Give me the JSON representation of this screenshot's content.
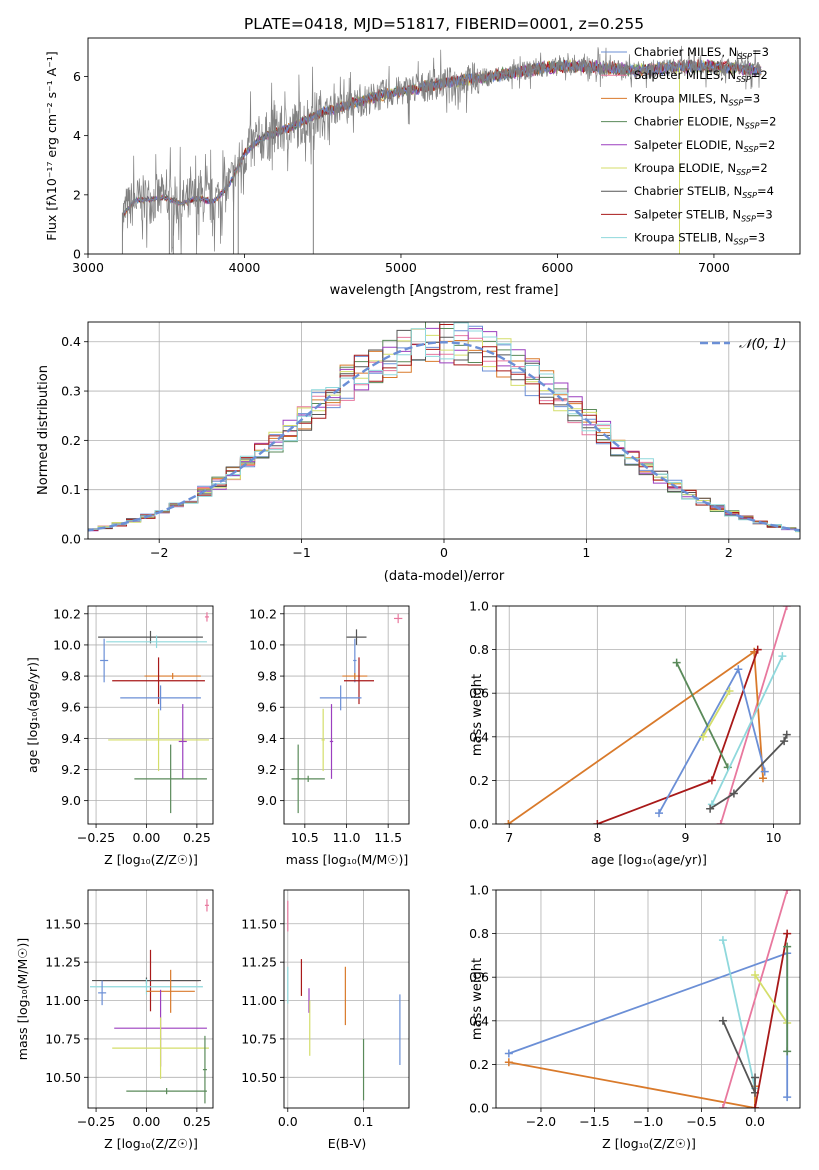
{
  "title": "PLATE=0418, MJD=51817, FIBERID=0001, z=0.255",
  "colors": {
    "ch_miles": "#6b8fd6",
    "sa_miles": "#e8789e",
    "kr_miles": "#d97a2b",
    "ch_elodie": "#5a8a5a",
    "sa_elodie": "#9b3fbf",
    "kr_elodie": "#d4de6a",
    "ch_stelib": "#555555",
    "sa_stelib": "#a81919",
    "kr_stelib": "#8fd8dc",
    "normal": "#6b8fd6",
    "data": "#808080"
  },
  "chart_data": [
    {
      "id": "spectrum",
      "type": "line",
      "xlabel": "wavelength [Angstrom, rest frame]",
      "ylabel": "Flux [fλ10⁻¹⁷ erg cm⁻² s⁻¹ A⁻¹]",
      "xlim": [
        3000,
        7550
      ],
      "ylim": [
        0,
        7.3
      ],
      "xticks": [
        3000,
        4000,
        5000,
        6000,
        7000
      ],
      "yticks": [
        0,
        2,
        4,
        6
      ],
      "legend": [
        {
          "key": "ch_miles",
          "label": "Chabrier MILES, N",
          "sub": "SSP",
          "tail": "=3"
        },
        {
          "key": "sa_miles",
          "label": "Salpeter MILES, N",
          "sub": "SSP",
          "tail": "=2"
        },
        {
          "key": "kr_miles",
          "label": "Kroupa MILES, N",
          "sub": "SSP",
          "tail": "=3"
        },
        {
          "key": "ch_elodie",
          "label": "Chabrier ELODIE, N",
          "sub": "SSP",
          "tail": "=2"
        },
        {
          "key": "sa_elodie",
          "label": "Salpeter ELODIE, N",
          "sub": "SSP",
          "tail": "=2"
        },
        {
          "key": "kr_elodie",
          "label": "Kroupa ELODIE, N",
          "sub": "SSP",
          "tail": "=2"
        },
        {
          "key": "ch_stelib",
          "label": "Chabrier STELIB, N",
          "sub": "SSP",
          "tail": "=4"
        },
        {
          "key": "sa_stelib",
          "label": "Salpeter STELIB, N",
          "sub": "SSP",
          "tail": "=3"
        },
        {
          "key": "kr_stelib",
          "label": "Kroupa STELIB, N",
          "sub": "SSP",
          "tail": "=3"
        }
      ],
      "continuum": {
        "x": [
          3220,
          3300,
          3400,
          3500,
          3600,
          3700,
          3800,
          3900,
          4000,
          4100,
          4300,
          4500,
          4700,
          4900,
          5100,
          5300,
          5500,
          5700,
          5900,
          6100,
          6300,
          6500,
          6700,
          6900,
          7100,
          7300
        ],
        "y": [
          1.3,
          1.8,
          1.85,
          1.9,
          1.7,
          1.9,
          1.75,
          2.3,
          3.4,
          3.9,
          4.3,
          4.8,
          5.1,
          5.4,
          5.6,
          5.8,
          5.95,
          6.1,
          6.3,
          6.35,
          6.3,
          6.2,
          6.3,
          6.35,
          6.3,
          6.2
        ]
      }
    },
    {
      "id": "residuals",
      "type": "step",
      "xlabel": "(data-model)/error",
      "ylabel": "Normed distribution",
      "xlim": [
        -2.5,
        2.5
      ],
      "ylim": [
        0,
        0.44
      ],
      "xticks": [
        -2,
        -1,
        0,
        1,
        2
      ],
      "yticks": [
        0.0,
        0.1,
        0.2,
        0.3,
        0.4
      ],
      "legend_label": "𝒩(0, 1)"
    },
    {
      "id": "age_vs_Z",
      "type": "errorbar",
      "xlabel": "Z [log₁₀(Z/Z☉)]",
      "ylabel": "age  [log₁₀(age/yr)]",
      "xlim": [
        -0.29,
        0.33
      ],
      "ylim": [
        8.85,
        10.25
      ],
      "xticks": [
        -0.25,
        0.0,
        0.25
      ],
      "yticks": [
        9.0,
        9.2,
        9.4,
        9.6,
        9.8,
        10.0,
        10.2
      ],
      "points": [
        {
          "key": "ch_stelib",
          "x": 0.02,
          "xerr": 0.26,
          "y": 10.05,
          "yerr": 0.04
        },
        {
          "key": "kr_stelib",
          "x": 0.05,
          "xerr": 0.25,
          "y": 10.02,
          "yerr": 0.04
        },
        {
          "key": "ch_miles",
          "x": -0.21,
          "xerr": 0.02,
          "y": 9.9,
          "yerr": 0.14
        },
        {
          "key": "sa_miles",
          "x": 0.3,
          "xerr": 0.01,
          "y": 10.18,
          "yerr": 0.03
        },
        {
          "key": "kr_miles",
          "x": 0.13,
          "xerr": 0.14,
          "y": 9.8,
          "yerr": 0.02
        },
        {
          "key": "sa_stelib",
          "x": 0.06,
          "xerr": 0.23,
          "y": 9.77,
          "yerr": 0.15
        },
        {
          "key": "ch_miles",
          "x": 0.07,
          "xerr": 0.2,
          "y": 9.66,
          "yerr": 0.08
        },
        {
          "key": "kr_elodie",
          "x": 0.06,
          "xerr": 0.25,
          "y": 9.39,
          "yerr": 0.2
        },
        {
          "key": "sa_elodie",
          "x": 0.18,
          "xerr": 0.02,
          "y": 9.38,
          "yerr": 0.24
        },
        {
          "key": "ch_elodie",
          "x": 0.12,
          "xerr": 0.18,
          "y": 9.14,
          "yerr": 0.22
        }
      ]
    },
    {
      "id": "age_vs_mass",
      "type": "errorbar",
      "xlabel": "mass [log₁₀(M/M☉)]",
      "xlim": [
        10.25,
        11.75
      ],
      "ylim": [
        8.85,
        10.25
      ],
      "xticks": [
        10.5,
        11.0,
        11.5
      ],
      "yticks": [
        9.0,
        9.2,
        9.4,
        9.6,
        9.8,
        10.0,
        10.2
      ],
      "points": [
        {
          "key": "ch_stelib",
          "x": 11.12,
          "xerr": 0.12,
          "y": 10.05,
          "yerr": 0.05
        },
        {
          "key": "sa_miles",
          "x": 11.62,
          "xerr": 0.05,
          "y": 10.17,
          "yerr": 0.03
        },
        {
          "key": "ch_miles",
          "x": 11.1,
          "xerr": 0.02,
          "y": 9.9,
          "yerr": 0.14
        },
        {
          "key": "kr_miles",
          "x": 11.1,
          "xerr": 0.15,
          "y": 9.8,
          "yerr": 0.02
        },
        {
          "key": "sa_stelib",
          "x": 11.15,
          "xerr": 0.18,
          "y": 9.77,
          "yerr": 0.15
        },
        {
          "key": "ch_miles",
          "x": 10.93,
          "xerr": 0.25,
          "y": 9.66,
          "yerr": 0.08
        },
        {
          "key": "kr_elodie",
          "x": 10.72,
          "xerr": 0.02,
          "y": 9.39,
          "yerr": 0.2
        },
        {
          "key": "sa_elodie",
          "x": 10.82,
          "xerr": 0.02,
          "y": 9.38,
          "yerr": 0.24
        },
        {
          "key": "ch_elodie",
          "x": 10.42,
          "xerr": 0.02,
          "y": 9.14,
          "yerr": 0.22
        },
        {
          "key": "ch_elodie",
          "x": 10.54,
          "xerr": 0.2,
          "y": 9.14,
          "yerr": 0.02
        }
      ]
    },
    {
      "id": "weight_vs_age",
      "type": "line",
      "xlabel": "age  [log₁₀(age/yr)]",
      "ylabel": "mass weight",
      "xlim": [
        6.85,
        10.3
      ],
      "ylim": [
        0,
        1
      ],
      "xticks": [
        7,
        8,
        9,
        10
      ],
      "yticks": [
        0.0,
        0.2,
        0.4,
        0.6,
        0.8,
        1.0
      ],
      "series": [
        {
          "key": "sa_miles",
          "x": [
            9.4,
            10.15
          ],
          "y": [
            0.0,
            1.0
          ]
        },
        {
          "key": "kr_miles",
          "x": [
            6.99,
            9.78,
            9.88
          ],
          "y": [
            0.0,
            0.79,
            0.21
          ]
        },
        {
          "key": "sa_stelib",
          "x": [
            8.0,
            9.3,
            9.82
          ],
          "y": [
            0.0,
            0.2,
            0.8
          ]
        },
        {
          "key": "ch_miles",
          "x": [
            8.7,
            9.6,
            9.9
          ],
          "y": [
            0.05,
            0.71,
            0.24
          ]
        },
        {
          "key": "ch_elodie",
          "x": [
            8.9,
            9.48
          ],
          "y": [
            0.74,
            0.26
          ]
        },
        {
          "key": "kr_elodie",
          "x": [
            9.2,
            9.5
          ],
          "y": [
            0.4,
            0.61
          ]
        },
        {
          "key": "kr_stelib",
          "x": [
            9.3,
            10.1
          ],
          "y": [
            0.09,
            0.77
          ]
        },
        {
          "key": "ch_stelib",
          "x": [
            9.28,
            9.55,
            10.12,
            10.15
          ],
          "y": [
            0.07,
            0.14,
            0.38,
            0.41
          ]
        }
      ]
    },
    {
      "id": "mass_vs_Z",
      "type": "errorbar",
      "xlabel": "Z [log₁₀(Z/Z☉)]",
      "ylabel": "mass [log₁₀(M/M☉)]",
      "xlim": [
        -0.29,
        0.33
      ],
      "ylim": [
        10.3,
        11.72
      ],
      "xticks": [
        -0.25,
        0.0,
        0.25
      ],
      "yticks": [
        10.5,
        10.75,
        11.0,
        11.25,
        11.5
      ],
      "points": [
        {
          "key": "sa_miles",
          "x": 0.3,
          "xerr": 0.01,
          "y": 11.62,
          "yerr": 0.04
        },
        {
          "key": "sa_stelib",
          "x": 0.02,
          "xerr": 0.24,
          "y": 11.13,
          "yerr": 0.2
        },
        {
          "key": "ch_stelib",
          "x": 0.0,
          "xerr": 0.27,
          "y": 11.13,
          "yerr": 0.02
        },
        {
          "key": "kr_stelib",
          "x": 0.0,
          "xerr": 0.28,
          "y": 11.09,
          "yerr": 0.05
        },
        {
          "key": "ch_miles",
          "x": -0.22,
          "xerr": 0.02,
          "y": 11.05,
          "yerr": 0.08
        },
        {
          "key": "kr_miles",
          "x": 0.12,
          "xerr": 0.12,
          "y": 11.06,
          "yerr": 0.14
        },
        {
          "key": "sa_elodie",
          "x": 0.07,
          "xerr": 0.23,
          "y": 10.82,
          "yerr": 0.25
        },
        {
          "key": "kr_elodie",
          "x": 0.07,
          "xerr": 0.24,
          "y": 10.69,
          "yerr": 0.2
        },
        {
          "key": "ch_elodie",
          "x": 0.1,
          "xerr": 0.2,
          "y": 10.41,
          "yerr": 0.02
        },
        {
          "key": "ch_elodie",
          "x": 0.29,
          "xerr": 0.01,
          "y": 10.55,
          "yerr": 0.22
        }
      ]
    },
    {
      "id": "mass_vs_ebv",
      "type": "errorbar",
      "xlabel": "E(B-V)",
      "xlim": [
        -0.005,
        0.16
      ],
      "ylim": [
        10.3,
        11.72
      ],
      "xticks": [
        0.0,
        0.1
      ],
      "yticks": [
        10.5,
        10.75,
        11.0,
        11.25,
        11.5
      ],
      "points": [
        {
          "key": "sa_miles",
          "x": 0.0,
          "xerr": 0.0,
          "y": 11.55,
          "yerr": 0.1
        },
        {
          "key": "kr_stelib",
          "x": 0.0,
          "xerr": 0.0,
          "y": 11.1,
          "yerr": 0.12
        },
        {
          "key": "sa_stelib",
          "x": 0.018,
          "xerr": 0.0,
          "y": 11.15,
          "yerr": 0.12
        },
        {
          "key": "sa_elodie",
          "x": 0.028,
          "xerr": 0.0,
          "y": 11.0,
          "yerr": 0.08
        },
        {
          "key": "kr_elodie",
          "x": 0.029,
          "xerr": 0.0,
          "y": 10.82,
          "yerr": 0.18
        },
        {
          "key": "kr_miles",
          "x": 0.076,
          "xerr": 0.0,
          "y": 11.03,
          "yerr": 0.19
        },
        {
          "key": "ch_elodie",
          "x": 0.1,
          "xerr": 0.0,
          "y": 10.55,
          "yerr": 0.2
        },
        {
          "key": "ch_miles",
          "x": 0.148,
          "xerr": 0.0,
          "y": 10.81,
          "yerr": 0.23
        }
      ]
    },
    {
      "id": "weight_vs_Z",
      "type": "line",
      "xlabel": "Z [log₁₀(Z/Z☉)]",
      "ylabel": "mass weight",
      "xlim": [
        -2.42,
        0.42
      ],
      "ylim": [
        0,
        1
      ],
      "xticks": [
        -2.0,
        -1.5,
        -1.0,
        -0.5,
        0.0
      ],
      "yticks": [
        0.0,
        0.2,
        0.4,
        0.6,
        0.8,
        1.0
      ],
      "series": [
        {
          "key": "ch_miles",
          "x": [
            -2.3,
            0.3,
            0.3
          ],
          "y": [
            0.25,
            0.71,
            0.05
          ]
        },
        {
          "key": "kr_miles",
          "x": [
            -2.3,
            0.0,
            0.0
          ],
          "y": [
            0.21,
            0.0,
            0.1
          ]
        },
        {
          "key": "sa_miles",
          "x": [
            -0.3,
            0.3
          ],
          "y": [
            0.0,
            1.0
          ]
        },
        {
          "key": "kr_stelib",
          "x": [
            -0.3,
            0.0
          ],
          "y": [
            0.77,
            0.09
          ]
        },
        {
          "key": "ch_stelib",
          "x": [
            -0.3,
            0.0,
            0.0
          ],
          "y": [
            0.4,
            0.07,
            0.14
          ]
        },
        {
          "key": "sa_stelib",
          "x": [
            0.0,
            0.3
          ],
          "y": [
            0.0,
            0.8
          ]
        },
        {
          "key": "kr_elodie",
          "x": [
            0.0,
            0.3
          ],
          "y": [
            0.61,
            0.39
          ]
        },
        {
          "key": "ch_elodie",
          "x": [
            0.3,
            0.3
          ],
          "y": [
            0.74,
            0.26
          ]
        }
      ]
    }
  ]
}
